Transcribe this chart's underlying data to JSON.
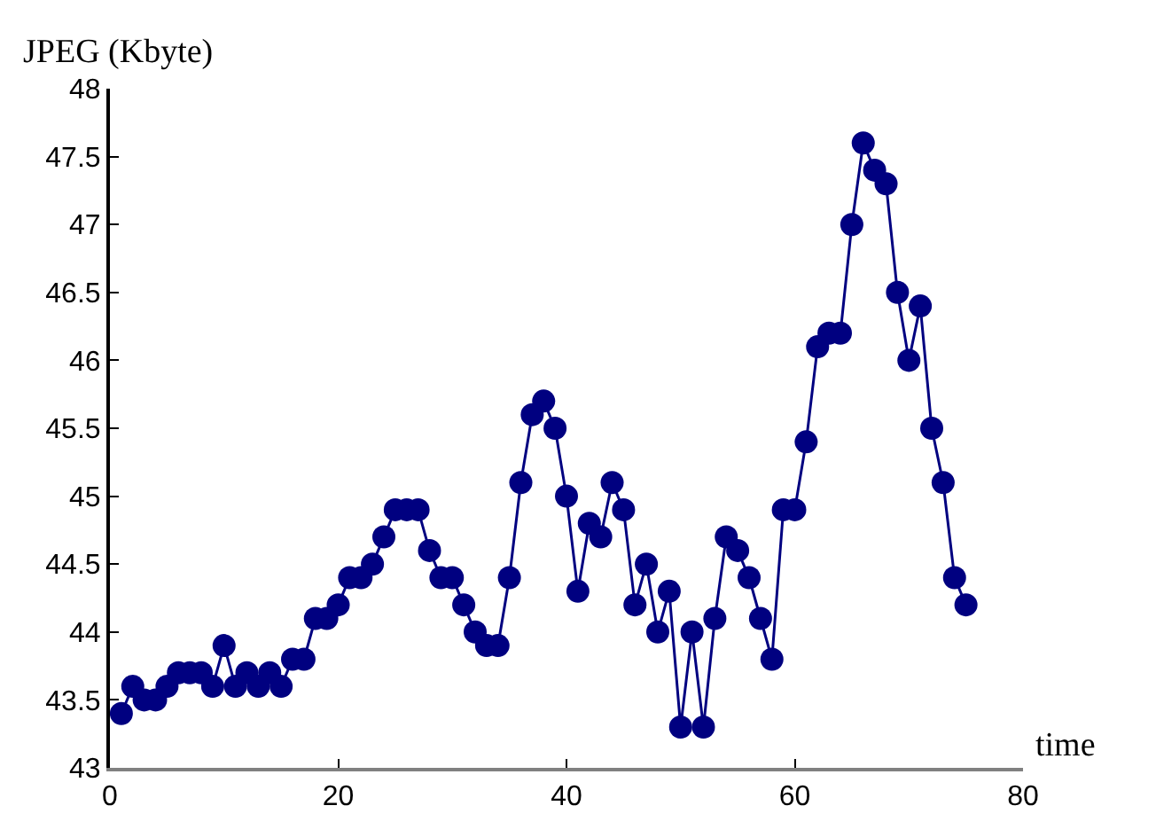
{
  "chart_data": {
    "type": "line",
    "xlabel": "time",
    "ylabel": "JPEG (Kbyte)",
    "x": [
      1,
      2,
      3,
      4,
      5,
      6,
      7,
      8,
      9,
      10,
      11,
      12,
      13,
      14,
      15,
      16,
      17,
      18,
      19,
      20,
      21,
      22,
      23,
      24,
      25,
      26,
      27,
      28,
      29,
      30,
      31,
      32,
      33,
      34,
      35,
      36,
      37,
      38,
      39,
      40,
      41,
      42,
      43,
      44,
      45,
      46,
      47,
      48,
      49,
      50,
      51,
      52,
      53,
      54,
      55,
      56,
      57,
      58,
      59,
      60,
      61,
      62,
      63,
      64,
      65,
      66,
      67,
      68,
      69,
      70,
      71,
      72,
      73,
      74,
      75
    ],
    "series": [
      {
        "color": "#000080",
        "values": [
          43.4,
          43.6,
          43.5,
          43.5,
          43.6,
          43.7,
          43.7,
          43.7,
          43.6,
          43.9,
          43.6,
          43.7,
          43.6,
          43.7,
          43.6,
          43.8,
          43.8,
          44.1,
          44.1,
          44.2,
          44.4,
          44.4,
          44.5,
          44.7,
          44.9,
          44.9,
          44.9,
          44.6,
          44.4,
          44.4,
          44.2,
          44.0,
          43.9,
          43.9,
          44.4,
          45.1,
          45.6,
          45.7,
          45.5,
          45.0,
          44.3,
          44.8,
          44.7,
          45.1,
          44.9,
          44.2,
          44.5,
          44.0,
          44.3,
          43.3,
          44.0,
          43.3,
          44.1,
          44.7,
          44.6,
          44.4,
          44.1,
          43.8,
          44.9,
          44.9,
          45.4,
          46.1,
          46.2,
          46.2,
          47.0,
          47.6,
          47.4,
          47.3,
          46.5,
          46.0,
          46.4,
          45.5,
          45.1,
          44.4,
          44.2
        ]
      }
    ],
    "xlim": [
      0,
      80
    ],
    "xticks": [
      0,
      20,
      40,
      60,
      80
    ],
    "ylim": [
      43,
      48
    ],
    "yticks": [
      43,
      43.5,
      44,
      44.5,
      45,
      45.5,
      46,
      46.5,
      47,
      47.5,
      48
    ],
    "legend": false,
    "marker": "circle",
    "line_style": "solid"
  }
}
